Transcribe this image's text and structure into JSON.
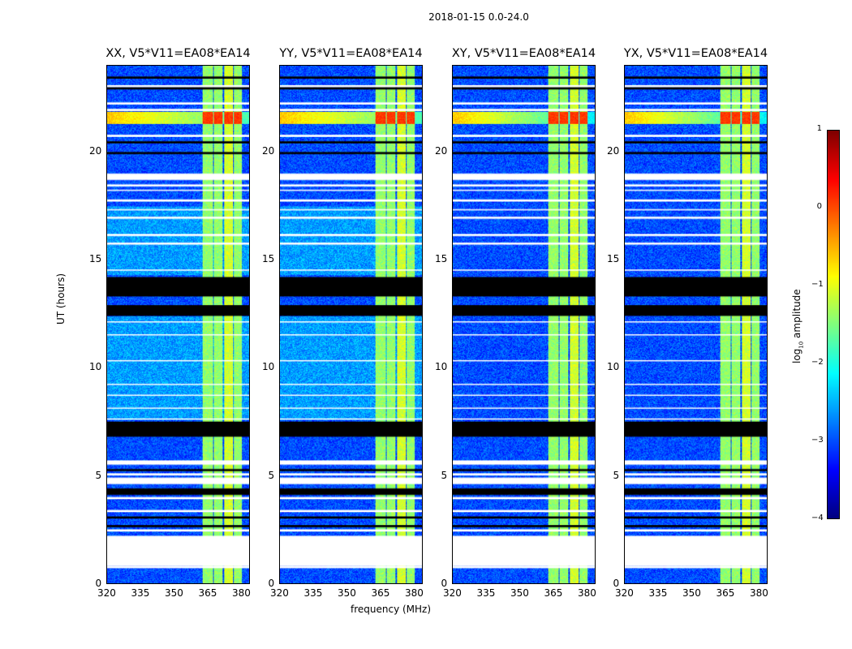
{
  "title": "2018-01-15 0.0-24.0",
  "chart_data": {
    "type": "heatmap",
    "panels": [
      {
        "title": "XX, V5*V11=EA08*EA14"
      },
      {
        "title": "YY, V5*V11=EA08*EA14"
      },
      {
        "title": "XY, V5*V11=EA08*EA14"
      },
      {
        "title": "YX, V5*V11=EA08*EA14"
      }
    ],
    "xlabel": "frequency (MHz)",
    "ylabel": "UT (hours)",
    "xlim": [
      320,
      384
    ],
    "ylim": [
      0,
      24
    ],
    "xticks": [
      "320",
      "335",
      "350",
      "365",
      "380"
    ],
    "xtick_values": [
      320,
      335,
      350,
      365,
      380
    ],
    "yticks": [
      "0",
      "5",
      "10",
      "15",
      "20"
    ],
    "ytick_values": [
      0,
      5,
      10,
      15,
      20
    ],
    "colorbar": {
      "label": "log10 amplitude",
      "label_main": "log",
      "label_sub": "10",
      "label_rest": " amplitude",
      "range": [
        -4,
        1
      ],
      "ticks": [
        "1",
        "0",
        "−1",
        "−2",
        "−3",
        "−4"
      ],
      "tick_values": [
        1,
        0,
        -1,
        -2,
        -3,
        -4
      ],
      "colormap": "jet"
    },
    "background_level": -3.0,
    "rfi_channels_mhz": [
      [
        363,
        367.5
      ],
      [
        368,
        372
      ],
      [
        372.5,
        376.5
      ],
      [
        377,
        380.5
      ]
    ],
    "rfi_level": -1.4,
    "strong_band_hours": [
      21.3,
      21.9
    ],
    "strong_band_level": -0.6,
    "flagged_white_hours": [
      [
        23.0,
        23.1
      ],
      [
        22.2,
        22.3
      ],
      [
        21.9,
        22.0
      ],
      [
        20.7,
        20.8
      ],
      [
        18.7,
        19.0
      ],
      [
        18.4,
        18.5
      ],
      [
        18.2,
        18.25
      ],
      [
        17.7,
        17.8
      ],
      [
        17.3,
        17.35
      ],
      [
        16.9,
        17.0
      ],
      [
        16.1,
        16.2
      ],
      [
        15.7,
        15.8
      ],
      [
        14.5,
        14.55
      ],
      [
        12.1,
        12.15
      ],
      [
        11.5,
        11.55
      ],
      [
        10.3,
        10.35
      ],
      [
        9.2,
        9.25
      ],
      [
        8.7,
        8.75
      ],
      [
        8.1,
        8.15
      ],
      [
        7.6,
        7.65
      ],
      [
        5.5,
        5.7
      ],
      [
        5.0,
        5.1
      ],
      [
        4.6,
        4.9
      ],
      [
        3.9,
        4.0
      ],
      [
        3.3,
        3.4
      ],
      [
        2.4,
        2.5
      ],
      [
        0.8,
        2.2
      ],
      [
        0.7,
        0.8
      ]
    ],
    "flagged_black_hours": [
      [
        23.4,
        23.5
      ],
      [
        22.9,
        23.0
      ],
      [
        20.4,
        20.5
      ],
      [
        19.9,
        20.0
      ],
      [
        13.3,
        14.2
      ],
      [
        12.4,
        12.9
      ],
      [
        6.8,
        7.5
      ],
      [
        5.2,
        5.3
      ],
      [
        4.1,
        4.4
      ],
      [
        3.0,
        3.1
      ],
      [
        2.6,
        2.7
      ]
    ]
  }
}
